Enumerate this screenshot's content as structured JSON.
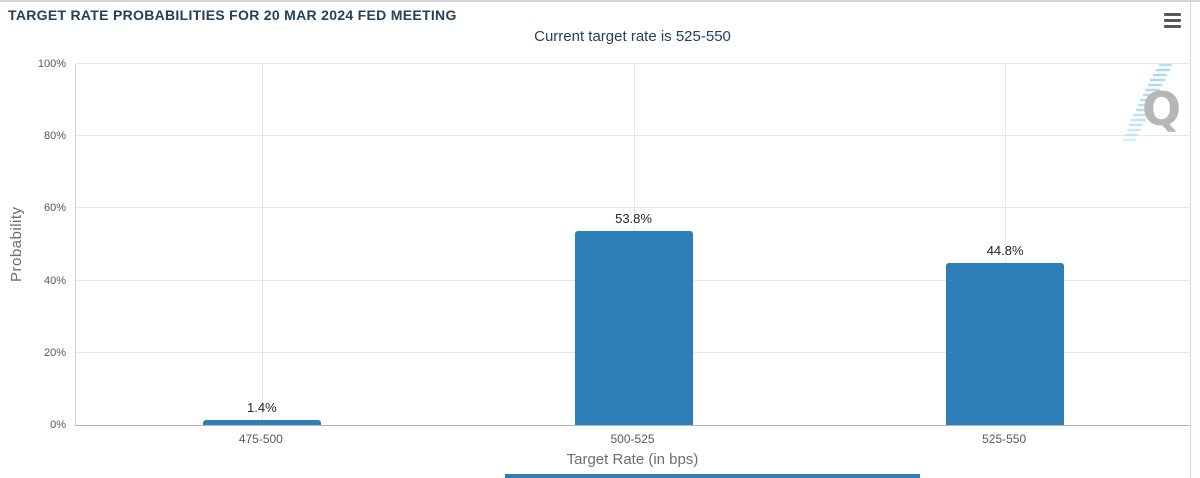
{
  "chart_data": {
    "type": "bar",
    "title": "TARGET RATE PROBABILITIES FOR 20 MAR 2024 FED MEETING",
    "subtitle": "Current target rate is 525-550",
    "categories": [
      "475-500",
      "500-525",
      "525-550"
    ],
    "values": [
      1.4,
      53.8,
      44.8
    ],
    "value_labels": [
      "1.4%",
      "53.8%",
      "44.8%"
    ],
    "xlabel": "Target Rate (in bps)",
    "ylabel": "Probability",
    "ylim": [
      0,
      100
    ],
    "yticks": [
      "0%",
      "20%",
      "40%",
      "60%",
      "80%",
      "100%"
    ],
    "grid": true,
    "legend": "none",
    "bar_color": "#2d7db7"
  },
  "icons": {
    "menu": "hamburger-icon",
    "watermark": "quikstrike-q-watermark"
  },
  "watermark_letter": "Q",
  "colors": {
    "title_text": "#23405f",
    "bar": "#2d7db7",
    "gridline": "#e6e6e6",
    "axis_line": "#cfcfcf",
    "bottom_axis_line": "#b3b3b3",
    "tick_label": "#58585a",
    "axis_title": "#6d6e71",
    "value_label": "#262626",
    "hamburger": "#58595b",
    "watermark_letter": "#b6b6b6",
    "watermark_dash": "#a7d7f2",
    "bottom_strip": "#2d7db7",
    "page_border": "#d4d4d4"
  }
}
